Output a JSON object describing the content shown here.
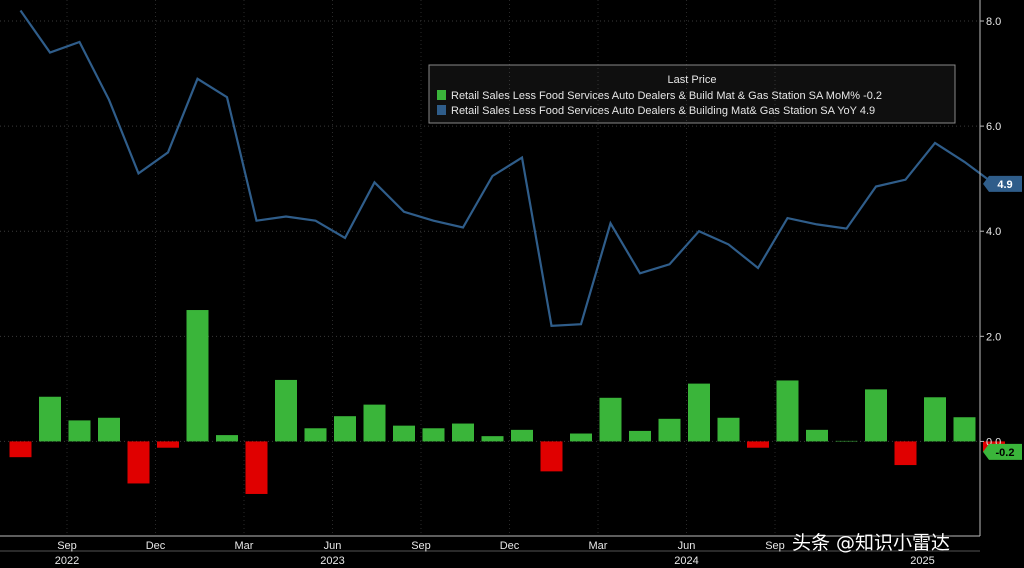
{
  "chart_data": {
    "type": "bar+line",
    "legend": {
      "title": "Last Price",
      "entries": [
        {
          "label": "Retail Sales Less Food Services Auto Dealers & Build Mat & Gas Station SA MoM%",
          "last": "-0.2",
          "color": "#3ab53a"
        },
        {
          "label": "Retail Sales Less Food Services Auto Dealers & Building Mat& Gas Station SA YoY",
          "last": "4.9",
          "color": "#2f5d8a"
        }
      ]
    },
    "bar_series": {
      "values": [
        -0.3,
        0.85,
        0.4,
        0.45,
        -0.8,
        -0.12,
        2.5,
        0.12,
        -1.0,
        1.17,
        0.25,
        0.48,
        0.7,
        0.3,
        0.25,
        0.34,
        0.1,
        0.22,
        -0.57,
        0.15,
        0.83,
        0.2,
        0.43,
        1.1,
        0.45,
        -0.12,
        1.16,
        0.22,
        0.01,
        0.99,
        -0.45,
        0.84,
        0.46,
        -0.2
      ],
      "pos_color": "#3ab53a",
      "neg_color": "#e00000"
    },
    "line_series": {
      "values": [
        8.2,
        7.4,
        7.6,
        6.5,
        5.1,
        5.5,
        6.9,
        6.55,
        4.2,
        4.28,
        4.2,
        3.87,
        4.93,
        4.37,
        4.2,
        4.07,
        5.05,
        5.4,
        2.2,
        2.23,
        4.15,
        3.2,
        3.37,
        4.0,
        3.75,
        3.3,
        4.25,
        4.13,
        4.05,
        4.85,
        4.98,
        5.68,
        5.32,
        4.9
      ],
      "color": "#2f5d8a"
    },
    "ylim": [
      -1.8,
      8.4
    ],
    "yticks": [
      "8.0",
      "6.0",
      "4.0",
      "2.0",
      "0.0"
    ],
    "x_ticks": [
      {
        "label": "Sep",
        "index": 1
      },
      {
        "label": "Dec",
        "index": 4
      },
      {
        "label": "Mar",
        "index": 7
      },
      {
        "label": "Jun",
        "index": 10
      },
      {
        "label": "Sep",
        "index": 13
      },
      {
        "label": "Dec",
        "index": 16
      },
      {
        "label": "Mar",
        "index": 19
      },
      {
        "label": "Jun",
        "index": 22
      },
      {
        "label": "Sep",
        "index": 25
      }
    ],
    "years": [
      {
        "label": "2022",
        "index": 1
      },
      {
        "label": "2023",
        "index": 10
      },
      {
        "label": "2024",
        "index": 22
      },
      {
        "label": "2025",
        "index": 30
      }
    ],
    "badges": [
      {
        "label": "4.9",
        "value": 4.9,
        "color": "#2f5d8a",
        "text_color": "#ffffff"
      },
      {
        "label": "-0.2",
        "value": -0.2,
        "color": "#3ab53a",
        "text_color": "#000000"
      }
    ]
  },
  "watermark": "头条 @知识小雷达"
}
